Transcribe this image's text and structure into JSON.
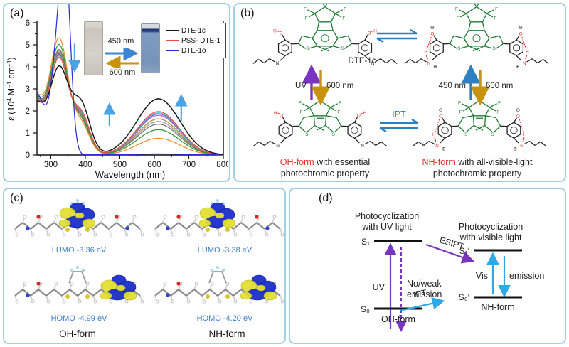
{
  "panels": {
    "a": {
      "label": "(a)",
      "inset": {
        "forward": "450 nm",
        "backward": "600 nm",
        "left_cuvette": "colorless-solution",
        "right_cuvette": "blue-solution",
        "forward_color": "#3e86d4",
        "backward_color": "#c8930c"
      }
    },
    "b": {
      "label": "(b)",
      "molecule_label": "DTE-1c",
      "left_transition": {
        "up": "UV",
        "down": "600 nm"
      },
      "right_transition": {
        "up": "450 nm",
        "down": "600 nm"
      },
      "ipt_label": "IPT",
      "captions": {
        "left": {
          "highlight": "OH-form",
          "rest": " with essential",
          "line2": "photochromic property"
        },
        "right": {
          "highlight": "NH-form",
          "rest": " with all-visible-light",
          "line2": "photochromic property"
        }
      },
      "colors": {
        "core_green": "#1e7b33",
        "hetero_red": "#e03228",
        "uv_purple": "#7a35c0",
        "gold": "#c8930c",
        "blue_arrow": "#2e7fc0",
        "ipt_blue": "#2e86c8"
      }
    },
    "c": {
      "label": "(c)",
      "orbitals": [
        {
          "label": "LUMO  -3.36 eV"
        },
        {
          "label": "LUMO  -3.38 eV"
        },
        {
          "label": "HOMO  -4.99 eV"
        },
        {
          "label": "HOMO  -4.20 eV"
        }
      ],
      "forms": {
        "left": "OH-form",
        "right": "NH-form"
      },
      "colors": {
        "label_blue": "#3d7ecc",
        "lobe_blue": "#1b2ec9",
        "lobe_yellow": "#e3df33"
      }
    },
    "d": {
      "label": "(d)",
      "left_title1": "Photocyclization",
      "left_title2": "with UV light",
      "right_title1": "Photocyclization",
      "right_title2": "with visible light",
      "levels": {
        "s1": "S₁",
        "s0": "S₀",
        "s1p": "S₁′",
        "s0p": "S₀′"
      },
      "arrows": {
        "uv": "UV",
        "noweak1": "No/weak",
        "noweak2": "emission",
        "esipt": "ESIPT",
        "ipt": "IPT",
        "vis": "Vis",
        "emission": "emission"
      },
      "forms": {
        "left": "OH-form",
        "right": "NH-form"
      },
      "colors": {
        "purple": "#7a35c0",
        "cyan": "#2da9e8"
      }
    }
  },
  "atoms": {
    "f": "F",
    "s": "S",
    "o": "O",
    "h": "H",
    "n": "N",
    "plus": "⊕",
    "minus": "⊖"
  },
  "chart_data": {
    "type": "line",
    "title": "",
    "xlabel": "Wavelength (nm)",
    "ylabel": "ε (10⁴ M⁻¹ cm⁻¹)",
    "ylabel_parts": [
      [
        "ε (10",
        0
      ],
      [
        "4",
        1
      ],
      [
        " M",
        0
      ],
      [
        "−1",
        1
      ],
      [
        " cm",
        0
      ],
      [
        "−1",
        1
      ],
      [
        ")",
        0
      ]
    ],
    "x_range": [
      260,
      800
    ],
    "y_range": [
      0,
      6
    ],
    "x_ticks": [
      300,
      400,
      500,
      600,
      700,
      800
    ],
    "y_ticks": [
      0,
      1,
      2,
      3,
      4,
      5,
      6
    ],
    "grid": false,
    "legend_position": "top-right",
    "legend": [
      {
        "label": "DTE-1c",
        "color": "#161616"
      },
      {
        "label": "PSS- DTE-1",
        "color": "#ee4b42"
      },
      {
        "label": "DTE-1o",
        "color": "#2d2de0"
      }
    ],
    "series": [
      {
        "name": "",
        "color": "#bd66cc",
        "bands": [
          [
            253,
            27,
            2.4
          ],
          [
            324,
            26,
            4.46
          ],
          [
            387,
            25,
            1.76
          ],
          [
            612,
            61,
            1.8
          ]
        ]
      },
      {
        "name": "",
        "color": "#7e5bd4",
        "bands": [
          [
            253,
            27,
            2.4
          ],
          [
            324,
            26,
            4.42
          ],
          [
            387,
            25,
            1.79
          ],
          [
            612,
            61,
            1.86
          ]
        ]
      },
      {
        "name": "",
        "color": "#38c8d4",
        "bands": [
          [
            253,
            27,
            2.4
          ],
          [
            324,
            26,
            4.36
          ],
          [
            387,
            25,
            1.82
          ],
          [
            612,
            61,
            1.91
          ]
        ]
      },
      {
        "name": "",
        "color": "#a08c28",
        "bands": [
          [
            253,
            27,
            2.42
          ],
          [
            324,
            26,
            4.52
          ],
          [
            387,
            25,
            1.7
          ],
          [
            612,
            61,
            1.64
          ]
        ]
      },
      {
        "name": "",
        "color": "#9b9b9b",
        "bands": [
          [
            253,
            27,
            2.45
          ],
          [
            324,
            26,
            4.58
          ],
          [
            387,
            25,
            1.66
          ],
          [
            612,
            61,
            1.52
          ]
        ]
      },
      {
        "name": "",
        "color": "#6f6f6f",
        "bands": [
          [
            253,
            27,
            2.47
          ],
          [
            324,
            26,
            4.64
          ],
          [
            387,
            25,
            1.62
          ],
          [
            612,
            61,
            1.4
          ]
        ]
      },
      {
        "name": "",
        "color": "#2e9733",
        "bands": [
          [
            253,
            27,
            2.52
          ],
          [
            324,
            26,
            4.88
          ],
          [
            387,
            25,
            1.52
          ],
          [
            612,
            61,
            1.15
          ]
        ]
      },
      {
        "name": "",
        "color": "#f58a2a",
        "bands": [
          [
            253,
            27,
            2.6
          ],
          [
            324,
            26,
            5.18
          ],
          [
            387,
            25,
            1.38
          ],
          [
            612,
            61,
            0.76
          ]
        ]
      },
      {
        "name": "PSS- DTE-1",
        "color": "#ee4b42",
        "bands": [
          [
            253,
            27,
            2.38
          ],
          [
            324,
            26,
            4.3
          ],
          [
            387,
            25,
            1.86
          ],
          [
            612,
            61,
            1.97
          ]
        ]
      },
      {
        "name": "DTE-1o",
        "color": "#2d2de0",
        "bands": [
          [
            253,
            30,
            2.9
          ],
          [
            327,
            20,
            5.72
          ],
          [
            345,
            14,
            4.95
          ],
          [
            612,
            60,
            0.05
          ]
        ]
      },
      {
        "name": "DTE-1c",
        "color": "#161616",
        "bands": [
          [
            253,
            27,
            2.3
          ],
          [
            324,
            27,
            3.85
          ],
          [
            387,
            26,
            2.28
          ],
          [
            612,
            62,
            2.55
          ]
        ]
      }
    ],
    "annotations": [
      {
        "dir": "down",
        "x": 369,
        "y_from": 5.05,
        "y_to": 3.92
      },
      {
        "dir": "up",
        "x": 470,
        "y_from": 1.32,
        "y_to": 2.21
      },
      {
        "dir": "up",
        "x": 678,
        "y_from": 1.55,
        "y_to": 2.6
      }
    ],
    "annotation_color": "#4ba3e3"
  }
}
